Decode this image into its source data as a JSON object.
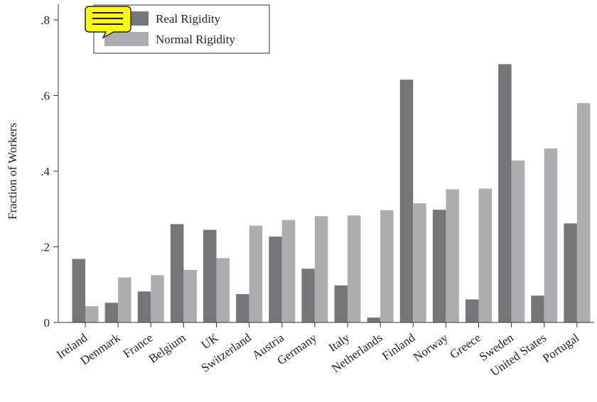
{
  "chart_data": {
    "type": "bar",
    "title": "",
    "xlabel": "",
    "ylabel": "Fraction of Workers",
    "ylim": [
      0,
      0.8
    ],
    "yticks": [
      0,
      0.2,
      0.4,
      0.6,
      0.8
    ],
    "ytick_labels": [
      "0",
      ".2",
      ".4",
      ".6",
      ".8"
    ],
    "grid": false,
    "legend_position": "top-left",
    "categories": [
      "Ireland",
      "Denmark",
      "France",
      "Belgium",
      "UK",
      "Switzerland",
      "Austria",
      "Germany",
      "Italy",
      "Netherlands",
      "Finland",
      "Norway",
      "Greece",
      "Sweden",
      "United States",
      "Portugal"
    ],
    "series": [
      {
        "name": "Real Rigidity",
        "color": "#767679",
        "values": [
          0.168,
          0.052,
          0.082,
          0.26,
          0.245,
          0.075,
          0.227,
          0.142,
          0.098,
          0.013,
          0.642,
          0.298,
          0.061,
          0.683,
          0.071,
          0.262
        ]
      },
      {
        "name": "Normal Rigidity",
        "color": "#adadb0",
        "values": [
          0.043,
          0.119,
          0.125,
          0.139,
          0.17,
          0.256,
          0.271,
          0.281,
          0.283,
          0.297,
          0.315,
          0.352,
          0.354,
          0.428,
          0.46,
          0.58
        ]
      }
    ]
  },
  "icons": {
    "note": "speech-bubble-icon",
    "note_color": "#ffff00"
  }
}
